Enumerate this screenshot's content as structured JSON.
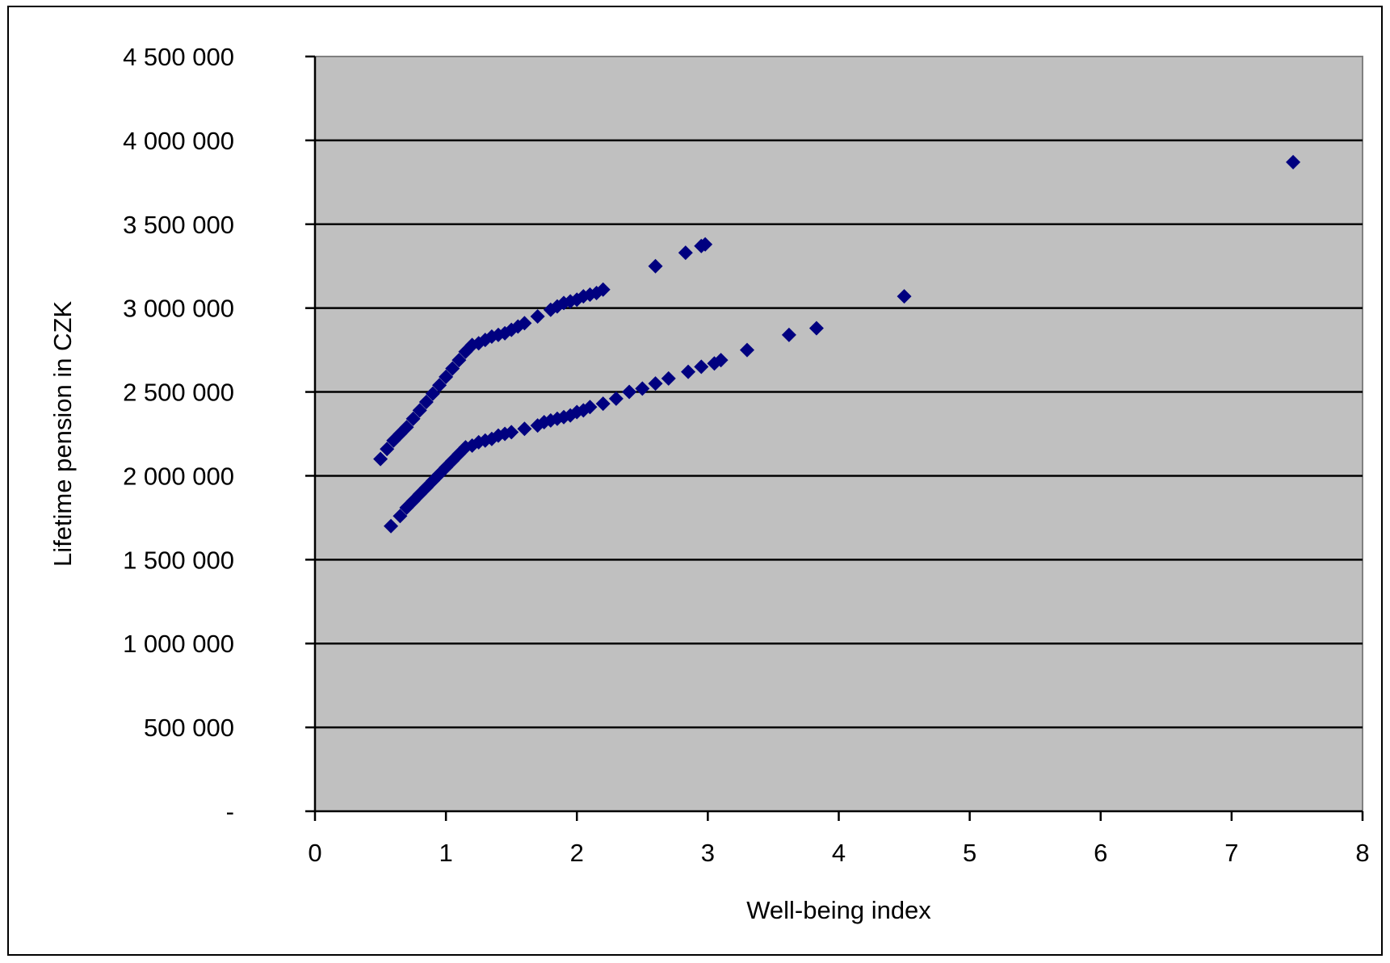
{
  "chart_data": {
    "type": "scatter",
    "title": "",
    "xlabel": "Well-being index",
    "ylabel": "Lifetime pension in CZK",
    "xlim": [
      0,
      8
    ],
    "ylim": [
      0,
      4500000
    ],
    "x_ticks": [
      0,
      1,
      2,
      3,
      4,
      5,
      6,
      7,
      8
    ],
    "x_tick_labels": [
      "0",
      "1",
      "2",
      "3",
      "4",
      "5",
      "6",
      "7",
      "8"
    ],
    "y_ticks": [
      0,
      500000,
      1000000,
      1500000,
      2000000,
      2500000,
      3000000,
      3500000,
      4000000,
      4500000
    ],
    "y_tick_labels": [
      "-",
      "500 000",
      "1 000 000",
      "1 500 000",
      "2 000 000",
      "2 500 000",
      "3 000 000",
      "3 500 000",
      "4 000 000",
      "4 500 000"
    ],
    "grid": "horizontal",
    "plot_background": "#c0c0c0",
    "marker_color": "#000080",
    "marker": "diamond",
    "series": [
      {
        "points": [
          [
            0.5,
            2100000
          ],
          [
            0.55,
            2160000
          ],
          [
            0.6,
            2210000
          ],
          [
            0.65,
            2250000
          ],
          [
            0.7,
            2290000
          ],
          [
            0.75,
            2340000
          ],
          [
            0.8,
            2390000
          ],
          [
            0.85,
            2440000
          ],
          [
            0.9,
            2490000
          ],
          [
            0.95,
            2540000
          ],
          [
            1.0,
            2590000
          ],
          [
            1.05,
            2640000
          ],
          [
            1.1,
            2690000
          ],
          [
            1.15,
            2740000
          ],
          [
            1.2,
            2780000
          ],
          [
            1.25,
            2790000
          ],
          [
            1.3,
            2810000
          ],
          [
            1.35,
            2830000
          ],
          [
            1.4,
            2840000
          ],
          [
            1.45,
            2850000
          ],
          [
            1.5,
            2870000
          ],
          [
            1.55,
            2890000
          ],
          [
            1.6,
            2910000
          ],
          [
            1.7,
            2950000
          ],
          [
            1.8,
            2990000
          ],
          [
            1.85,
            3010000
          ],
          [
            1.9,
            3030000
          ],
          [
            1.95,
            3040000
          ],
          [
            2.0,
            3050000
          ],
          [
            2.05,
            3070000
          ],
          [
            2.1,
            3080000
          ],
          [
            2.15,
            3090000
          ],
          [
            2.2,
            3110000
          ],
          [
            2.6,
            3250000
          ],
          [
            2.83,
            3330000
          ],
          [
            2.95,
            3370000
          ],
          [
            2.98,
            3380000
          ],
          [
            4.5,
            3070000
          ],
          [
            7.47,
            3870000
          ]
        ]
      },
      {
        "points": [
          [
            0.58,
            1700000
          ],
          [
            0.65,
            1760000
          ],
          [
            0.7,
            1810000
          ],
          [
            0.75,
            1850000
          ],
          [
            0.8,
            1890000
          ],
          [
            0.85,
            1930000
          ],
          [
            0.9,
            1970000
          ],
          [
            0.95,
            2010000
          ],
          [
            1.0,
            2050000
          ],
          [
            1.05,
            2090000
          ],
          [
            1.1,
            2130000
          ],
          [
            1.15,
            2170000
          ],
          [
            1.2,
            2180000
          ],
          [
            1.25,
            2200000
          ],
          [
            1.3,
            2210000
          ],
          [
            1.35,
            2220000
          ],
          [
            1.4,
            2240000
          ],
          [
            1.45,
            2250000
          ],
          [
            1.5,
            2260000
          ],
          [
            1.6,
            2280000
          ],
          [
            1.7,
            2300000
          ],
          [
            1.75,
            2320000
          ],
          [
            1.8,
            2330000
          ],
          [
            1.85,
            2340000
          ],
          [
            1.9,
            2350000
          ],
          [
            1.95,
            2360000
          ],
          [
            2.0,
            2380000
          ],
          [
            2.05,
            2390000
          ],
          [
            2.1,
            2410000
          ],
          [
            2.2,
            2430000
          ],
          [
            2.3,
            2460000
          ],
          [
            2.4,
            2500000
          ],
          [
            2.5,
            2520000
          ],
          [
            2.6,
            2550000
          ],
          [
            2.7,
            2580000
          ],
          [
            2.85,
            2620000
          ],
          [
            2.95,
            2650000
          ],
          [
            3.05,
            2670000
          ],
          [
            3.1,
            2690000
          ],
          [
            3.3,
            2750000
          ],
          [
            3.62,
            2840000
          ],
          [
            3.83,
            2880000
          ]
        ]
      }
    ]
  }
}
